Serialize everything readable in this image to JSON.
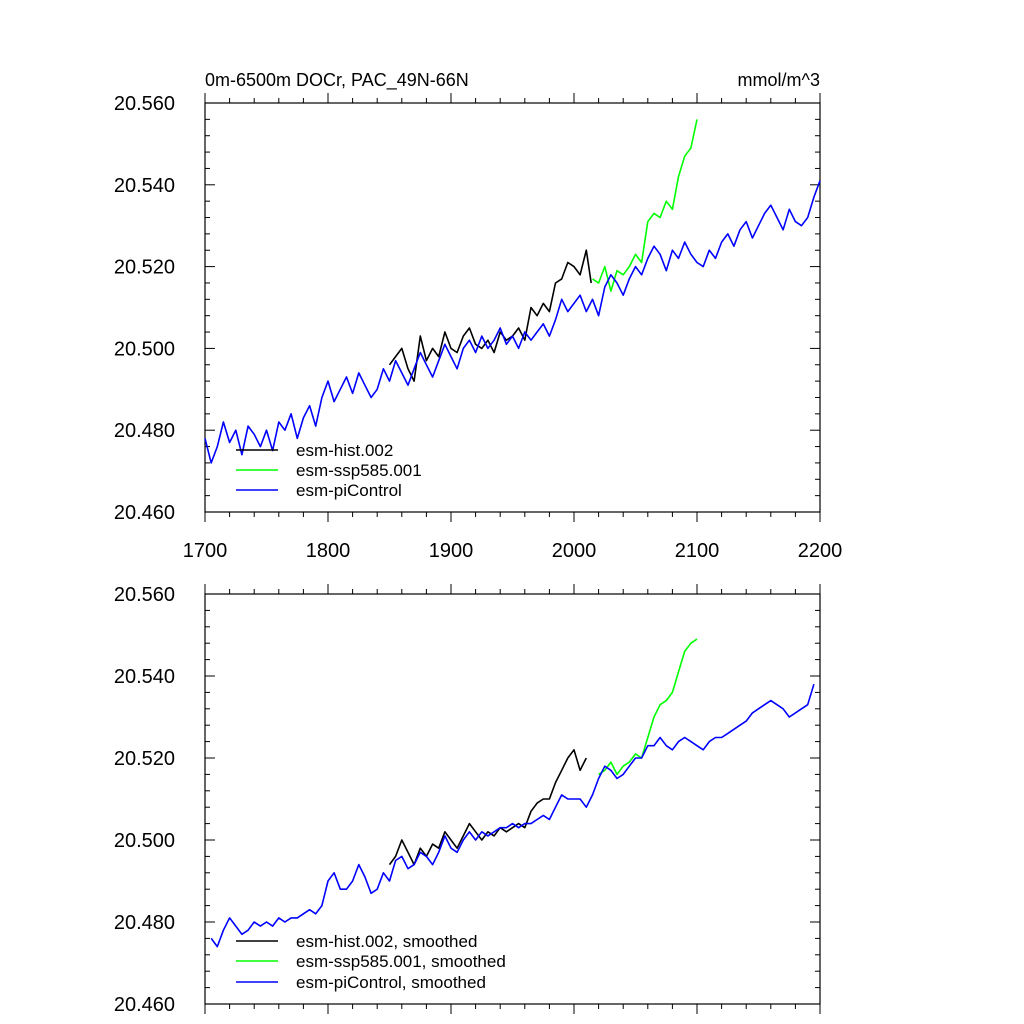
{
  "chart_data": [
    {
      "type": "line",
      "title": "0m-6500m DOCr, PAC_49N-66N",
      "units": "mmol/m^3",
      "xlabel": "",
      "ylabel": "",
      "xlim": [
        1700,
        2200
      ],
      "ylim": [
        20.46,
        20.56
      ],
      "x_ticks": [
        "1700",
        "1800",
        "1900",
        "2000",
        "2100",
        "2200"
      ],
      "y_ticks": [
        "20.460",
        "20.480",
        "20.500",
        "20.520",
        "20.540",
        "20.560"
      ],
      "legend_position": "bottom-left",
      "series": [
        {
          "name": "esm-hist.002",
          "color": "#000000",
          "x": [
            1850,
            1855,
            1860,
            1865,
            1870,
            1875,
            1880,
            1885,
            1890,
            1895,
            1900,
            1905,
            1910,
            1915,
            1920,
            1925,
            1930,
            1935,
            1940,
            1945,
            1950,
            1955,
            1960,
            1965,
            1970,
            1975,
            1980,
            1985,
            1990,
            1995,
            2000,
            2005,
            2010,
            2014
          ],
          "y": [
            20.496,
            20.498,
            20.5,
            20.495,
            20.492,
            20.503,
            20.497,
            20.5,
            20.498,
            20.504,
            20.5,
            20.499,
            20.503,
            20.505,
            20.501,
            20.5,
            20.502,
            20.499,
            20.504,
            20.502,
            20.503,
            20.505,
            20.502,
            20.51,
            20.508,
            20.511,
            20.509,
            20.516,
            20.517,
            20.521,
            20.52,
            20.518,
            20.524,
            20.516
          ]
        },
        {
          "name": "esm-ssp585.001",
          "color": "#00ff00",
          "x": [
            2015,
            2020,
            2025,
            2030,
            2035,
            2040,
            2045,
            2050,
            2055,
            2060,
            2065,
            2070,
            2075,
            2080,
            2085,
            2090,
            2095,
            2100
          ],
          "y": [
            20.517,
            20.516,
            20.52,
            20.514,
            20.519,
            20.518,
            20.52,
            20.523,
            20.521,
            20.531,
            20.533,
            20.532,
            20.536,
            20.534,
            20.542,
            20.547,
            20.549,
            20.556
          ]
        },
        {
          "name": "esm-piControl",
          "color": "#0000ff",
          "x": [
            1700,
            1705,
            1710,
            1715,
            1720,
            1725,
            1730,
            1735,
            1740,
            1745,
            1750,
            1755,
            1760,
            1765,
            1770,
            1775,
            1780,
            1785,
            1790,
            1795,
            1800,
            1805,
            1810,
            1815,
            1820,
            1825,
            1830,
            1835,
            1840,
            1845,
            1850,
            1855,
            1860,
            1865,
            1870,
            1875,
            1880,
            1885,
            1890,
            1895,
            1900,
            1905,
            1910,
            1915,
            1920,
            1925,
            1930,
            1935,
            1940,
            1945,
            1950,
            1955,
            1960,
            1965,
            1970,
            1975,
            1980,
            1985,
            1990,
            1995,
            2000,
            2005,
            2010,
            2015,
            2020,
            2025,
            2030,
            2035,
            2040,
            2045,
            2050,
            2055,
            2060,
            2065,
            2070,
            2075,
            2080,
            2085,
            2090,
            2095,
            2100,
            2105,
            2110,
            2115,
            2120,
            2125,
            2130,
            2135,
            2140,
            2145,
            2150,
            2155,
            2160,
            2165,
            2170,
            2175,
            2180,
            2185,
            2190,
            2195,
            2200
          ],
          "y": [
            20.478,
            20.472,
            20.476,
            20.482,
            20.477,
            20.48,
            20.474,
            20.481,
            20.479,
            20.476,
            20.48,
            20.475,
            20.482,
            20.48,
            20.484,
            20.478,
            20.483,
            20.486,
            20.481,
            20.488,
            20.492,
            20.487,
            20.49,
            20.493,
            20.489,
            20.494,
            20.491,
            20.488,
            20.49,
            20.495,
            20.492,
            20.497,
            20.494,
            20.491,
            20.495,
            20.499,
            20.496,
            20.493,
            20.497,
            20.501,
            20.498,
            20.495,
            20.5,
            20.502,
            20.499,
            20.503,
            20.5,
            20.502,
            20.505,
            20.501,
            20.503,
            20.5,
            20.504,
            20.502,
            20.504,
            20.506,
            20.503,
            20.507,
            20.512,
            20.509,
            20.511,
            20.513,
            20.509,
            20.512,
            20.508,
            20.515,
            20.518,
            20.516,
            20.513,
            20.517,
            20.52,
            20.518,
            20.522,
            20.525,
            20.523,
            20.519,
            20.524,
            20.522,
            20.526,
            20.523,
            20.521,
            20.52,
            20.524,
            20.522,
            20.526,
            20.528,
            20.525,
            20.529,
            20.531,
            20.527,
            20.53,
            20.533,
            20.535,
            20.532,
            20.529,
            20.534,
            20.531,
            20.53,
            20.532,
            20.537,
            20.541
          ]
        }
      ],
      "legend": [
        "esm-hist.002",
        "esm-ssp585.001",
        "esm-piControl"
      ]
    },
    {
      "type": "line",
      "title": "",
      "xlabel": "",
      "ylabel": "",
      "xlim": [
        1700,
        2200
      ],
      "ylim": [
        20.46,
        20.56
      ],
      "y_ticks": [
        "20.460",
        "20.480",
        "20.500",
        "20.520",
        "20.540",
        "20.560"
      ],
      "legend_position": "bottom-left",
      "series": [
        {
          "name": "esm-hist.002, smoothed",
          "color": "#000000",
          "x": [
            1850,
            1855,
            1860,
            1865,
            1870,
            1875,
            1880,
            1885,
            1890,
            1895,
            1900,
            1905,
            1910,
            1915,
            1920,
            1925,
            1930,
            1935,
            1940,
            1945,
            1950,
            1955,
            1960,
            1965,
            1970,
            1975,
            1980,
            1985,
            1990,
            1995,
            2000,
            2005,
            2010
          ],
          "y": [
            20.494,
            20.496,
            20.5,
            20.497,
            20.494,
            20.498,
            20.496,
            20.499,
            20.498,
            20.502,
            20.5,
            20.498,
            20.501,
            20.504,
            20.502,
            20.5,
            20.502,
            20.501,
            20.503,
            20.502,
            20.503,
            20.504,
            20.503,
            20.507,
            20.509,
            20.51,
            20.51,
            20.514,
            20.517,
            20.52,
            20.522,
            20.517,
            20.52
          ]
        },
        {
          "name": "esm-ssp585.001, smoothed",
          "color": "#00ff00",
          "x": [
            2020,
            2025,
            2030,
            2035,
            2040,
            2045,
            2050,
            2055,
            2060,
            2065,
            2070,
            2075,
            2080,
            2085,
            2090,
            2095,
            2100
          ],
          "y": [
            20.516,
            20.517,
            20.519,
            20.516,
            20.518,
            20.519,
            20.521,
            20.52,
            20.525,
            20.53,
            20.533,
            20.534,
            20.536,
            20.541,
            20.546,
            20.548,
            20.549
          ]
        },
        {
          "name": "esm-piControl, smoothed",
          "color": "#0000ff",
          "x": [
            1705,
            1710,
            1715,
            1720,
            1725,
            1730,
            1735,
            1740,
            1745,
            1750,
            1755,
            1760,
            1765,
            1770,
            1775,
            1780,
            1785,
            1790,
            1795,
            1800,
            1805,
            1810,
            1815,
            1820,
            1825,
            1830,
            1835,
            1840,
            1845,
            1850,
            1855,
            1860,
            1865,
            1870,
            1875,
            1880,
            1885,
            1890,
            1895,
            1900,
            1905,
            1910,
            1915,
            1920,
            1925,
            1930,
            1935,
            1940,
            1945,
            1950,
            1955,
            1960,
            1965,
            1970,
            1975,
            1980,
            1985,
            1990,
            1995,
            2000,
            2005,
            2010,
            2015,
            2020,
            2025,
            2030,
            2035,
            2040,
            2045,
            2050,
            2055,
            2060,
            2065,
            2070,
            2075,
            2080,
            2085,
            2090,
            2095,
            2100,
            2105,
            2110,
            2115,
            2120,
            2125,
            2130,
            2135,
            2140,
            2145,
            2150,
            2155,
            2160,
            2165,
            2170,
            2175,
            2180,
            2185,
            2190,
            2195
          ],
          "y": [
            20.476,
            20.474,
            20.478,
            20.481,
            20.479,
            20.477,
            20.478,
            20.48,
            20.479,
            20.48,
            20.479,
            20.481,
            20.48,
            20.481,
            20.481,
            20.482,
            20.483,
            20.482,
            20.484,
            20.49,
            20.492,
            20.488,
            20.488,
            20.49,
            20.494,
            20.491,
            20.487,
            20.488,
            20.492,
            20.49,
            20.495,
            20.496,
            20.493,
            20.494,
            20.497,
            20.496,
            20.494,
            20.497,
            20.501,
            20.498,
            20.497,
            20.5,
            20.502,
            20.5,
            20.502,
            20.501,
            20.502,
            20.503,
            20.503,
            20.504,
            20.503,
            20.504,
            20.504,
            20.505,
            20.506,
            20.505,
            20.508,
            20.511,
            20.51,
            20.51,
            20.51,
            20.508,
            20.511,
            20.515,
            20.518,
            20.517,
            20.515,
            20.516,
            20.518,
            20.52,
            20.52,
            20.523,
            20.523,
            20.525,
            20.523,
            20.522,
            20.524,
            20.525,
            20.524,
            20.523,
            20.522,
            20.524,
            20.525,
            20.525,
            20.526,
            20.527,
            20.528,
            20.529,
            20.531,
            20.532,
            20.533,
            20.534,
            20.533,
            20.532,
            20.53,
            20.531,
            20.532,
            20.533,
            20.538
          ]
        }
      ],
      "legend": [
        "esm-hist.002, smoothed",
        "esm-ssp585.001, smoothed",
        "esm-piControl, smoothed"
      ]
    }
  ]
}
